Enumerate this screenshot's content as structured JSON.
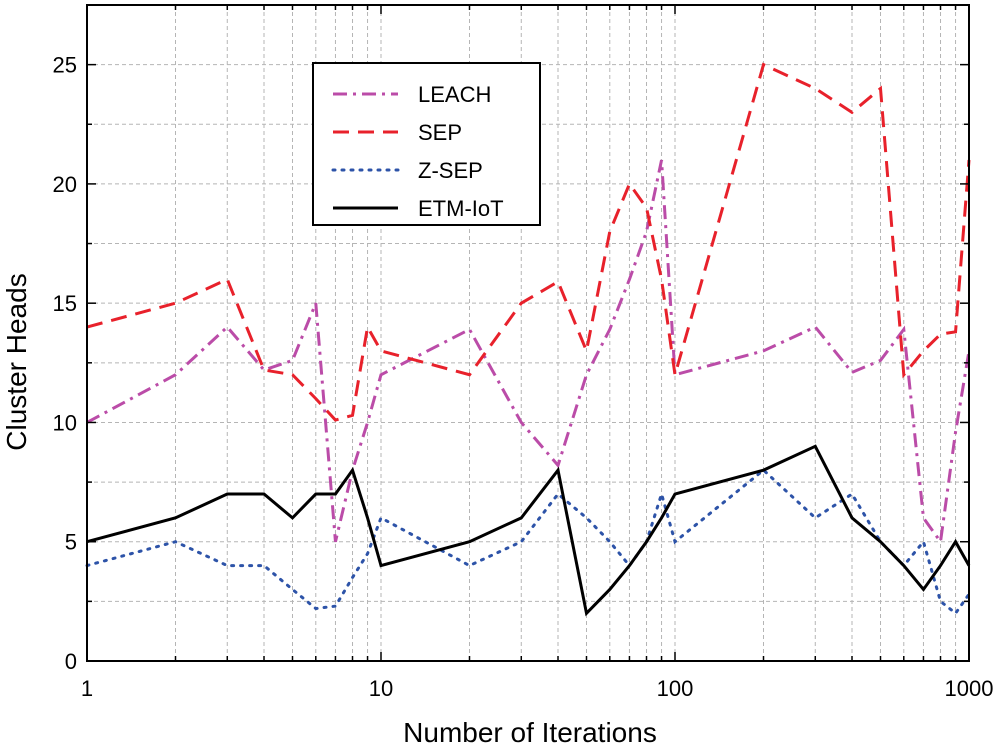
{
  "chart_data": {
    "type": "line",
    "title": "",
    "xlabel": "Number of Iterations",
    "ylabel": "Cluster Heads",
    "xscale": "log",
    "xlim": [
      1,
      1000
    ],
    "ylim": [
      0,
      27.5
    ],
    "x_ticks": [
      1,
      10,
      100,
      1000
    ],
    "x_tick_labels": [
      "1",
      "10",
      "100",
      "1000"
    ],
    "y_ticks": [
      0,
      5,
      10,
      15,
      20,
      25
    ],
    "y_tick_labels": [
      "0",
      "5",
      "10",
      "15",
      "20",
      "25"
    ],
    "grid": true,
    "legend_position": "top-center",
    "x": [
      1,
      2,
      3,
      4,
      5,
      6,
      7,
      8,
      9,
      10,
      20,
      30,
      40,
      50,
      60,
      70,
      80,
      90,
      100,
      200,
      300,
      400,
      500,
      600,
      700,
      800,
      900,
      1000
    ],
    "series": [
      {
        "name": "LEACH",
        "color": "#bb4ca8",
        "dash": "dashdot",
        "values": [
          10,
          12,
          14,
          12.2,
          12.6,
          15,
          5,
          8,
          10,
          12,
          13.9,
          10,
          8.2,
          12,
          13.9,
          16,
          18,
          21,
          12,
          13,
          14,
          12.1,
          12.6,
          13.9,
          6,
          5,
          9.6,
          13
        ]
      },
      {
        "name": "SEP",
        "color": "#e8212b",
        "dash": "dashed",
        "values": [
          14,
          15,
          16,
          12.2,
          12,
          11,
          10.1,
          10.3,
          14,
          13,
          12,
          15,
          15.9,
          13,
          18,
          20,
          19,
          16,
          12,
          25,
          24,
          23,
          24,
          12,
          13,
          13.7,
          13.8,
          21
        ]
      },
      {
        "name": "Z-SEP",
        "color": "#2d53a8",
        "dash": "dotted",
        "values": [
          4,
          5,
          4,
          4,
          3,
          2.2,
          2.3,
          3.5,
          4.5,
          6,
          4,
          5,
          7,
          6,
          5,
          4,
          5,
          7,
          5,
          8,
          6,
          7,
          5,
          4,
          5,
          2.5,
          2,
          2.8
        ]
      },
      {
        "name": "ETM-IoT",
        "color": "#000000",
        "dash": "solid",
        "values": [
          5,
          6,
          7,
          7,
          6,
          7,
          7,
          8,
          6,
          4,
          5,
          6,
          8,
          2,
          3,
          4,
          5,
          6,
          7,
          8,
          9,
          6,
          5,
          4,
          3,
          4,
          5,
          4
        ]
      }
    ]
  }
}
